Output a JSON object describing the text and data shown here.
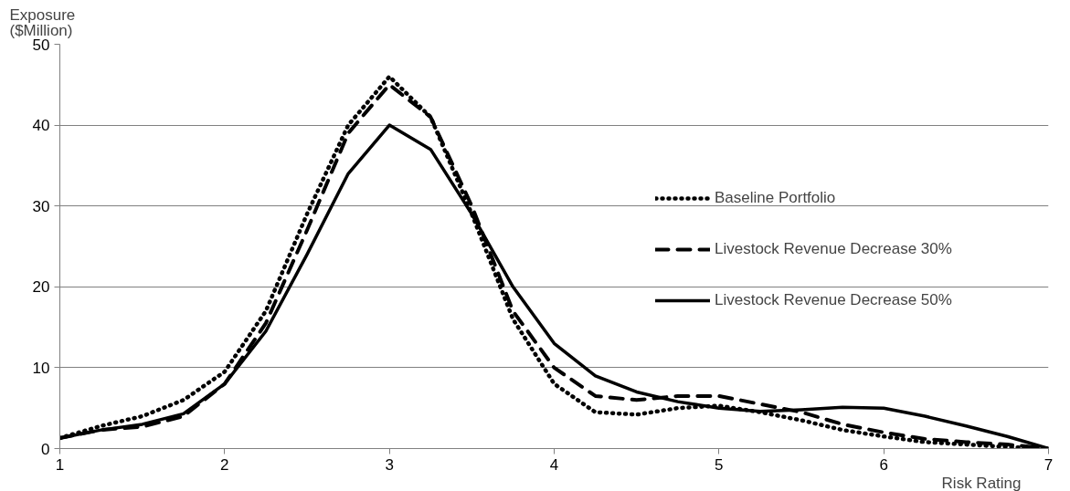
{
  "chart_data": {
    "type": "line",
    "xlabel": "Risk Rating",
    "ylabel": "Exposure ($Million)",
    "x": [
      1,
      1.25,
      1.5,
      1.75,
      2,
      2.25,
      2.5,
      2.75,
      3,
      3.25,
      3.5,
      3.75,
      4,
      4.25,
      4.5,
      4.75,
      5,
      5.25,
      5.5,
      5.75,
      6,
      6.25,
      6.5,
      6.75,
      7
    ],
    "series": [
      {
        "name": "Baseline Portfolio",
        "color": "#000000",
        "line_style": "dotted",
        "values": [
          1.3,
          2.8,
          4,
          6,
          9.5,
          17,
          29,
          40,
          46,
          41,
          29,
          16,
          8,
          4.5,
          4.2,
          5,
          5.3,
          4.5,
          3.5,
          2.3,
          1.5,
          0.8,
          0.5,
          0.2,
          0
        ]
      },
      {
        "name": "Livestock Revenue Decrease 30%",
        "color": "#000000",
        "line_style": "dashed",
        "values": [
          1.3,
          2.3,
          2.7,
          4,
          8,
          15.5,
          27,
          39,
          45,
          41,
          30,
          17,
          10,
          6.5,
          6,
          6.5,
          6.5,
          5.5,
          4.5,
          3,
          2,
          1.2,
          0.8,
          0.5,
          0
        ]
      },
      {
        "name": "Livestock Revenue Decrease 50%",
        "color": "#000000",
        "line_style": "solid",
        "values": [
          1.3,
          2.3,
          3,
          4.3,
          8,
          14.5,
          24,
          34,
          40,
          37,
          29,
          20,
          13,
          9,
          7,
          5.8,
          5,
          4.6,
          4.8,
          5.1,
          5,
          4,
          2.8,
          1.5,
          0
        ]
      }
    ],
    "xlim": [
      1,
      7
    ],
    "xticks": [
      1,
      2,
      3,
      4,
      5,
      6,
      7
    ],
    "ylim": [
      0,
      50
    ],
    "yticks": [
      0,
      10,
      20,
      30,
      40,
      50
    ],
    "grid": "y",
    "legend": "right",
    "marker": "none"
  }
}
